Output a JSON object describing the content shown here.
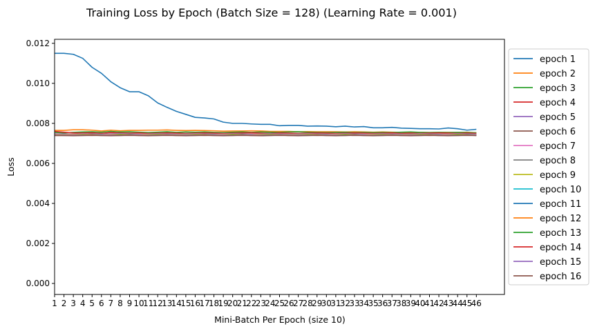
{
  "chart_data": {
    "type": "line",
    "title": "Training Loss by Epoch (Batch Size = 128) (Learning Rate = 0.001)",
    "xlabel": "Mini-Batch Per Epoch (size 10)",
    "ylabel": "Loss",
    "x": [
      1,
      2,
      3,
      4,
      5,
      6,
      7,
      8,
      9,
      10,
      11,
      12,
      13,
      14,
      15,
      16,
      17,
      18,
      19,
      20,
      21,
      22,
      23,
      24,
      25,
      26,
      27,
      28,
      29,
      30,
      31,
      32,
      33,
      34,
      35,
      36,
      37,
      38,
      39,
      40,
      41,
      42,
      43,
      44,
      45,
      46
    ],
    "xlim": [
      1,
      49
    ],
    "ylim": [
      -0.00055,
      0.0122
    ],
    "yticks": [
      0.0,
      0.002,
      0.004,
      0.006,
      0.008,
      0.01,
      0.012
    ],
    "ytick_labels": [
      "0.000",
      "0.002",
      "0.004",
      "0.006",
      "0.008",
      "0.010",
      "0.012"
    ],
    "grid": false,
    "legend_position": "outside-right",
    "series": [
      {
        "name": "epoch 1",
        "color": "#1f77b4",
        "values": [
          0.0115,
          0.0115,
          0.01145,
          0.01125,
          0.0108,
          0.0105,
          0.01008,
          0.00978,
          0.00958,
          0.00958,
          0.00938,
          0.00902,
          0.0088,
          0.0086,
          0.00845,
          0.0083,
          0.00827,
          0.00822,
          0.00806,
          0.008,
          0.008,
          0.00797,
          0.00795,
          0.00795,
          0.00788,
          0.0079,
          0.0079,
          0.00786,
          0.00787,
          0.00786,
          0.00783,
          0.00786,
          0.00782,
          0.00784,
          0.00778,
          0.00778,
          0.0078,
          0.00776,
          0.00775,
          0.00773,
          0.00773,
          0.00772,
          0.00777,
          0.00773,
          0.00766,
          0.0077
        ]
      },
      {
        "name": "epoch 2",
        "color": "#ff7f0e",
        "values": [
          0.00765,
          0.00765,
          0.00768,
          0.00768,
          0.00766,
          0.00762,
          0.00766,
          0.00763,
          0.00765,
          0.00765,
          0.00766,
          0.00766,
          0.00767,
          0.00765,
          0.00764,
          0.00765,
          0.00764,
          0.00763,
          0.00761,
          0.00762,
          0.00762,
          0.00763,
          0.00762,
          0.0076,
          0.0076,
          0.0076,
          0.00758,
          0.00759,
          0.00758,
          0.00758,
          0.00758,
          0.00757,
          0.00758,
          0.00757,
          0.00756,
          0.00757,
          0.00756,
          0.00755,
          0.00755,
          0.00755,
          0.00754,
          0.00755,
          0.00755,
          0.00754,
          0.00756,
          0.00753
        ]
      },
      {
        "name": "epoch 3",
        "color": "#2ca02c",
        "values": [
          0.00755,
          0.00752,
          0.00755,
          0.00757,
          0.00758,
          0.00756,
          0.0076,
          0.00757,
          0.00758,
          0.00756,
          0.00754,
          0.00756,
          0.00758,
          0.00755,
          0.00757,
          0.00756,
          0.00757,
          0.00755,
          0.00754,
          0.00756,
          0.00757,
          0.00755,
          0.00757,
          0.00756,
          0.00755,
          0.00757,
          0.00758,
          0.00756,
          0.00755,
          0.00754,
          0.00755,
          0.00756,
          0.00754,
          0.00755,
          0.00754,
          0.00755,
          0.00754,
          0.00756,
          0.00757,
          0.00755,
          0.00754,
          0.00755,
          0.00754,
          0.00755,
          0.00754,
          0.00753
        ]
      },
      {
        "name": "epoch 4",
        "color": "#d62728",
        "values": [
          0.0076,
          0.00756,
          0.00752,
          0.00752,
          0.00753,
          0.0075,
          0.00754,
          0.00752,
          0.00751,
          0.00752,
          0.0075,
          0.00751,
          0.00752,
          0.00751,
          0.0075,
          0.00751,
          0.00752,
          0.00751,
          0.0075,
          0.00751,
          0.00752,
          0.00753,
          0.00751,
          0.0075,
          0.00752,
          0.00751,
          0.0075,
          0.00751,
          0.00752,
          0.00751,
          0.0075,
          0.00751,
          0.00752,
          0.00751,
          0.0075,
          0.00751,
          0.00752,
          0.0075,
          0.00751,
          0.0075,
          0.00751,
          0.00752,
          0.00751,
          0.0075,
          0.00751,
          0.0075
        ]
      },
      {
        "name": "epoch 5",
        "color": "#9467bd",
        "values": [
          0.00748,
          0.00747,
          0.00746,
          0.00748,
          0.00747,
          0.00746,
          0.00748,
          0.00749,
          0.00747,
          0.00746,
          0.00747,
          0.00748,
          0.00747,
          0.00746,
          0.00747,
          0.00748,
          0.00747,
          0.00746,
          0.00747,
          0.00748,
          0.00747,
          0.00746,
          0.00747,
          0.00748,
          0.00747,
          0.00746,
          0.00747,
          0.00748,
          0.00747,
          0.00746,
          0.00747,
          0.00748,
          0.00747,
          0.00746,
          0.00747,
          0.00748,
          0.00747,
          0.00746,
          0.00747,
          0.00748,
          0.00747,
          0.00746,
          0.00747,
          0.00748,
          0.00747,
          0.00746
        ]
      },
      {
        "name": "epoch 6",
        "color": "#8c564b",
        "values": [
          0.00744,
          0.00744,
          0.00743,
          0.00744,
          0.00745,
          0.00744,
          0.00743,
          0.00744,
          0.00745,
          0.00744,
          0.00743,
          0.00744,
          0.00745,
          0.00744,
          0.00743,
          0.00744,
          0.00745,
          0.00744,
          0.00743,
          0.00744,
          0.00745,
          0.00744,
          0.00743,
          0.00744,
          0.00745,
          0.00744,
          0.00743,
          0.00744,
          0.00745,
          0.00744,
          0.00743,
          0.00744,
          0.00745,
          0.00744,
          0.00743,
          0.00744,
          0.00745,
          0.00744,
          0.00743,
          0.00744,
          0.00745,
          0.00744,
          0.00743,
          0.00744,
          0.00745,
          0.00744
        ]
      },
      {
        "name": "epoch 7",
        "color": "#e377c2",
        "values": [
          0.00746,
          0.00745,
          0.00745,
          0.00746,
          0.00745,
          0.00744,
          0.00746,
          0.00745,
          0.00744,
          0.00746,
          0.00745,
          0.00744,
          0.00746,
          0.00745,
          0.00744,
          0.00746,
          0.00745,
          0.00744,
          0.00746,
          0.00745,
          0.00744,
          0.00746,
          0.00745,
          0.00744,
          0.00746,
          0.00745,
          0.00744,
          0.00746,
          0.00745,
          0.00744,
          0.00746,
          0.00745,
          0.00744,
          0.00746,
          0.00745,
          0.00744,
          0.00746,
          0.00745,
          0.00744,
          0.00746,
          0.00745,
          0.00744,
          0.00746,
          0.00745,
          0.00744,
          0.00745
        ]
      },
      {
        "name": "epoch 8",
        "color": "#7f7f7f",
        "values": [
          0.00743,
          0.00743,
          0.00742,
          0.00743,
          0.00744,
          0.00743,
          0.00742,
          0.00743,
          0.00744,
          0.00743,
          0.00742,
          0.00743,
          0.00744,
          0.00743,
          0.00742,
          0.00743,
          0.00744,
          0.00743,
          0.00742,
          0.00743,
          0.00744,
          0.00743,
          0.00742,
          0.00743,
          0.00744,
          0.00743,
          0.00742,
          0.00743,
          0.00744,
          0.00743,
          0.00742,
          0.00743,
          0.00744,
          0.00743,
          0.00742,
          0.00743,
          0.00744,
          0.00743,
          0.00742,
          0.00743,
          0.00744,
          0.00743,
          0.00742,
          0.00743,
          0.00744,
          0.00743
        ]
      },
      {
        "name": "epoch 9",
        "color": "#bcbd22",
        "values": [
          0.00744,
          0.00743,
          0.00744,
          0.00745,
          0.00744,
          0.00743,
          0.00744,
          0.00745,
          0.00744,
          0.00743,
          0.00744,
          0.00745,
          0.00744,
          0.00743,
          0.00744,
          0.00745,
          0.00744,
          0.00743,
          0.00744,
          0.00745,
          0.00744,
          0.00743,
          0.00744,
          0.00745,
          0.00744,
          0.00743,
          0.00744,
          0.00745,
          0.00744,
          0.00743,
          0.00744,
          0.00745,
          0.00744,
          0.00743,
          0.00744,
          0.00745,
          0.00744,
          0.00743,
          0.00744,
          0.00745,
          0.00744,
          0.00743,
          0.00744,
          0.00745,
          0.00744,
          0.00743
        ]
      },
      {
        "name": "epoch 10",
        "color": "#17becf",
        "values": [
          0.00742,
          0.00742,
          0.00741,
          0.00742,
          0.00743,
          0.00742,
          0.00741,
          0.00742,
          0.00743,
          0.00742,
          0.00741,
          0.00742,
          0.00743,
          0.00742,
          0.00741,
          0.00742,
          0.00743,
          0.00742,
          0.00741,
          0.00742,
          0.00743,
          0.00742,
          0.00741,
          0.00742,
          0.00743,
          0.00742,
          0.00741,
          0.00742,
          0.00743,
          0.00742,
          0.00741,
          0.00742,
          0.00743,
          0.00742,
          0.00741,
          0.00742,
          0.00743,
          0.00742,
          0.00741,
          0.00742,
          0.00743,
          0.00742,
          0.00741,
          0.00742,
          0.00743,
          0.00742
        ]
      },
      {
        "name": "epoch 11",
        "color": "#1f77b4",
        "values": [
          0.00741,
          0.00741,
          0.0074,
          0.00741,
          0.00742,
          0.00741,
          0.0074,
          0.00741,
          0.00742,
          0.00741,
          0.0074,
          0.00741,
          0.00742,
          0.00741,
          0.0074,
          0.00741,
          0.00742,
          0.00741,
          0.0074,
          0.00741,
          0.00742,
          0.00741,
          0.0074,
          0.00741,
          0.00742,
          0.00741,
          0.0074,
          0.00741,
          0.00742,
          0.00741,
          0.0074,
          0.00741,
          0.00742,
          0.00741,
          0.0074,
          0.00741,
          0.00742,
          0.00741,
          0.0074,
          0.00741,
          0.00742,
          0.00741,
          0.0074,
          0.00741,
          0.00742,
          0.00741
        ]
      },
      {
        "name": "epoch 12",
        "color": "#ff7f0e",
        "values": [
          0.00742,
          0.00741,
          0.00742,
          0.00743,
          0.00742,
          0.00741,
          0.00742,
          0.00743,
          0.00742,
          0.00741,
          0.00742,
          0.00743,
          0.00742,
          0.00741,
          0.00742,
          0.00743,
          0.00742,
          0.00741,
          0.00742,
          0.00743,
          0.00742,
          0.00741,
          0.00742,
          0.00743,
          0.00742,
          0.00741,
          0.00742,
          0.00743,
          0.00742,
          0.00741,
          0.00742,
          0.00743,
          0.00742,
          0.00741,
          0.00742,
          0.00743,
          0.00742,
          0.00741,
          0.00742,
          0.00743,
          0.00742,
          0.00741,
          0.00742,
          0.00743,
          0.00742,
          0.00741
        ]
      },
      {
        "name": "epoch 13",
        "color": "#2ca02c",
        "values": [
          0.00741,
          0.0074,
          0.00741,
          0.00742,
          0.00741,
          0.0074,
          0.00741,
          0.00742,
          0.00741,
          0.0074,
          0.00741,
          0.00742,
          0.00741,
          0.0074,
          0.00741,
          0.00742,
          0.00741,
          0.0074,
          0.00741,
          0.00742,
          0.00741,
          0.0074,
          0.00741,
          0.00742,
          0.00741,
          0.0074,
          0.00741,
          0.00742,
          0.00741,
          0.0074,
          0.00741,
          0.00742,
          0.00741,
          0.0074,
          0.00741,
          0.00742,
          0.00741,
          0.0074,
          0.00741,
          0.00742,
          0.00741,
          0.0074,
          0.00741,
          0.00742,
          0.00741,
          0.0074
        ]
      },
      {
        "name": "epoch 14",
        "color": "#d62728",
        "values": [
          0.0074,
          0.0074,
          0.00739,
          0.0074,
          0.00741,
          0.0074,
          0.00739,
          0.0074,
          0.00741,
          0.0074,
          0.00739,
          0.0074,
          0.00741,
          0.0074,
          0.00739,
          0.0074,
          0.00741,
          0.0074,
          0.00739,
          0.0074,
          0.00741,
          0.0074,
          0.00739,
          0.0074,
          0.00741,
          0.0074,
          0.00739,
          0.0074,
          0.00741,
          0.0074,
          0.00739,
          0.0074,
          0.00741,
          0.0074,
          0.00739,
          0.0074,
          0.00741,
          0.0074,
          0.00739,
          0.0074,
          0.00741,
          0.0074,
          0.00739,
          0.0074,
          0.00741,
          0.0074
        ]
      },
      {
        "name": "epoch 15",
        "color": "#9467bd",
        "values": [
          0.00741,
          0.0074,
          0.00741,
          0.00741,
          0.0074,
          0.00741,
          0.00741,
          0.0074,
          0.00741,
          0.00741,
          0.0074,
          0.00741,
          0.00741,
          0.0074,
          0.00741,
          0.00741,
          0.0074,
          0.00741,
          0.00741,
          0.0074,
          0.00741,
          0.00741,
          0.0074,
          0.00741,
          0.00741,
          0.0074,
          0.00741,
          0.00741,
          0.0074,
          0.00741,
          0.00741,
          0.0074,
          0.00741,
          0.00741,
          0.0074,
          0.00741,
          0.00741,
          0.0074,
          0.00741,
          0.00741,
          0.0074,
          0.00741,
          0.00741,
          0.0074,
          0.00741,
          0.00741
        ]
      },
      {
        "name": "epoch 16",
        "color": "#8c564b",
        "values": [
          0.00739,
          0.00739,
          0.00738,
          0.00739,
          0.0074,
          0.00739,
          0.00738,
          0.00739,
          0.0074,
          0.00739,
          0.00738,
          0.00739,
          0.0074,
          0.00739,
          0.00738,
          0.00739,
          0.0074,
          0.00739,
          0.00738,
          0.00739,
          0.0074,
          0.00739,
          0.00738,
          0.00739,
          0.0074,
          0.00739,
          0.00738,
          0.00739,
          0.0074,
          0.00739,
          0.00738,
          0.00739,
          0.0074,
          0.00739,
          0.00738,
          0.00739,
          0.0074,
          0.00739,
          0.00738,
          0.00739,
          0.0074,
          0.00739,
          0.00738,
          0.00739,
          0.0074,
          0.00739
        ]
      }
    ]
  }
}
